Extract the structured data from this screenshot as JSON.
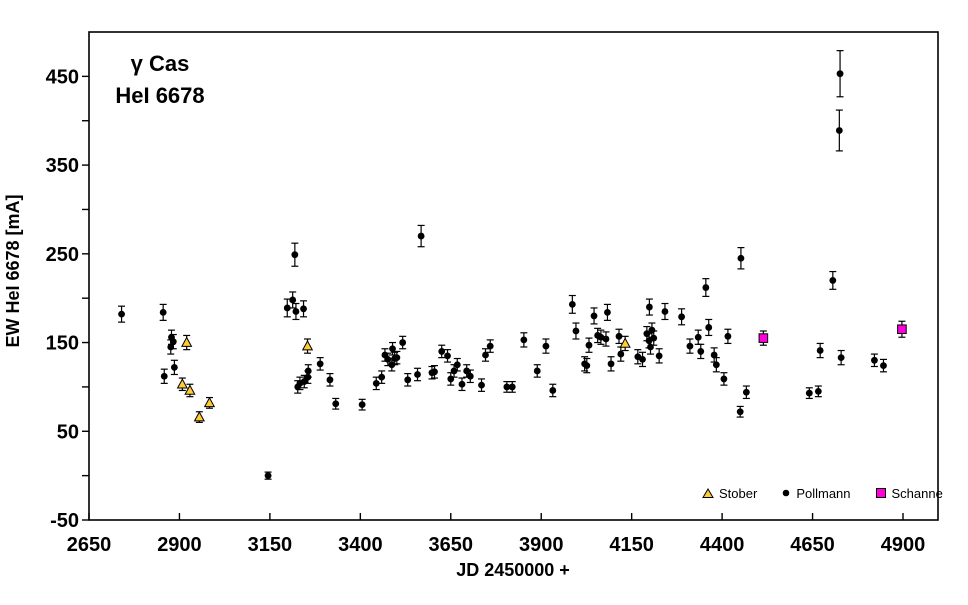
{
  "background": "#FFFFFF",
  "chart_data": {
    "type": "scatter",
    "title_lines": [
      "γ Cas",
      "HeI 6678"
    ],
    "xlabel": "JD 2450000 +",
    "ylabel": "EW HeI 6678 [mA]",
    "x_axis": {
      "min": 2650,
      "max": 4997,
      "tick_step": 250,
      "ticks": [
        2650,
        2900,
        3150,
        3400,
        3650,
        3900,
        4150,
        4400,
        4650,
        4900
      ]
    },
    "y_axis": {
      "min": -50,
      "max": 500,
      "labeled_ticks": [
        -50,
        50,
        150,
        250,
        350,
        450
      ],
      "minor_ticks": [
        0,
        100,
        200,
        300,
        400
      ]
    },
    "grid": false,
    "legend_position": "bottom-right",
    "point_format": "[JD-2450000, EW_mA, error_mA]",
    "series": [
      {
        "name": "Stober",
        "marker": "triangle",
        "color": "#FFCC33",
        "points": [
          [
            2908,
            103,
            7
          ],
          [
            2920,
            150,
            8
          ],
          [
            2929,
            96,
            7
          ],
          [
            2955,
            66,
            6
          ],
          [
            2983,
            82,
            6
          ],
          [
            3254,
            146,
            8
          ],
          [
            4132,
            149,
            8
          ]
        ]
      },
      {
        "name": "Pollmann",
        "marker": "circle",
        "color": "#000000",
        "points": [
          [
            2740,
            182,
            9
          ],
          [
            2855,
            184,
            9
          ],
          [
            2858,
            112,
            8
          ],
          [
            2876,
            145,
            8
          ],
          [
            2878,
            156,
            8
          ],
          [
            2883,
            151,
            8
          ],
          [
            2886,
            122,
            8
          ],
          [
            3145,
            0,
            4
          ],
          [
            3198,
            189,
            10
          ],
          [
            3213,
            198,
            9
          ],
          [
            3219,
            249,
            13
          ],
          [
            3222,
            185,
            9
          ],
          [
            3243,
            188,
            9
          ],
          [
            3227,
            100,
            7
          ],
          [
            3233,
            104,
            7
          ],
          [
            3245,
            106,
            7
          ],
          [
            3255,
            111,
            7
          ],
          [
            3256,
            118,
            7
          ],
          [
            3289,
            126,
            7
          ],
          [
            3316,
            108,
            7
          ],
          [
            3332,
            81,
            6
          ],
          [
            3405,
            80,
            6
          ],
          [
            3444,
            104,
            7
          ],
          [
            3459,
            111,
            7
          ],
          [
            3468,
            136,
            7
          ],
          [
            3476,
            131,
            7
          ],
          [
            3487,
            125,
            7
          ],
          [
            3489,
            143,
            7
          ],
          [
            3495,
            132,
            7
          ],
          [
            3501,
            133,
            7
          ],
          [
            3517,
            150,
            7
          ],
          [
            3531,
            108,
            7
          ],
          [
            3558,
            114,
            7
          ],
          [
            3568,
            270,
            12
          ],
          [
            3598,
            116,
            7
          ],
          [
            3605,
            117,
            7
          ],
          [
            3625,
            140,
            7
          ],
          [
            3641,
            135,
            7
          ],
          [
            3650,
            109,
            7
          ],
          [
            3659,
            118,
            7
          ],
          [
            3668,
            125,
            7
          ],
          [
            3681,
            103,
            7
          ],
          [
            3694,
            118,
            7
          ],
          [
            3704,
            112,
            7
          ],
          [
            3735,
            102,
            7
          ],
          [
            3746,
            136,
            7
          ],
          [
            3759,
            146,
            7
          ],
          [
            3805,
            100,
            6
          ],
          [
            3820,
            100,
            6
          ],
          [
            3852,
            153,
            8
          ],
          [
            3889,
            118,
            7
          ],
          [
            3913,
            146,
            8
          ],
          [
            3932,
            96,
            7
          ],
          [
            3986,
            193,
            10
          ],
          [
            3996,
            163,
            9
          ],
          [
            4020,
            126,
            8
          ],
          [
            4026,
            124,
            8
          ],
          [
            4032,
            147,
            8
          ],
          [
            4046,
            180,
            9
          ],
          [
            4056,
            158,
            8
          ],
          [
            4065,
            156,
            8
          ],
          [
            4079,
            154,
            8
          ],
          [
            4083,
            184,
            9
          ],
          [
            4093,
            126,
            8
          ],
          [
            4115,
            157,
            8
          ],
          [
            4120,
            137,
            8
          ],
          [
            4167,
            134,
            8
          ],
          [
            4180,
            131,
            8
          ],
          [
            4192,
            160,
            8
          ],
          [
            4198,
            152,
            8
          ],
          [
            4199,
            190,
            9
          ],
          [
            4202,
            145,
            8
          ],
          [
            4206,
            164,
            8
          ],
          [
            4211,
            155,
            8
          ],
          [
            4226,
            135,
            8
          ],
          [
            4242,
            185,
            9
          ],
          [
            4288,
            179,
            9
          ],
          [
            4311,
            146,
            8
          ],
          [
            4334,
            156,
            8
          ],
          [
            4341,
            140,
            8
          ],
          [
            4355,
            212,
            10
          ],
          [
            4363,
            167,
            9
          ],
          [
            4378,
            136,
            8
          ],
          [
            4384,
            125,
            8
          ],
          [
            4405,
            109,
            7
          ],
          [
            4416,
            157,
            8
          ],
          [
            4450,
            72,
            6
          ],
          [
            4452,
            245,
            12
          ],
          [
            4467,
            94,
            7
          ],
          [
            4641,
            93,
            6
          ],
          [
            4666,
            95,
            6
          ],
          [
            4671,
            141,
            8
          ],
          [
            4706,
            220,
            10
          ],
          [
            4724,
            389,
            23
          ],
          [
            4726,
            453,
            26
          ],
          [
            4729,
            133,
            8
          ],
          [
            4821,
            130,
            7
          ],
          [
            4846,
            124,
            7
          ]
        ]
      },
      {
        "name": "Schanne",
        "marker": "square",
        "color": "#FF00DC",
        "points": [
          [
            4514,
            155,
            8
          ],
          [
            4897,
            165,
            9
          ]
        ]
      }
    ]
  }
}
